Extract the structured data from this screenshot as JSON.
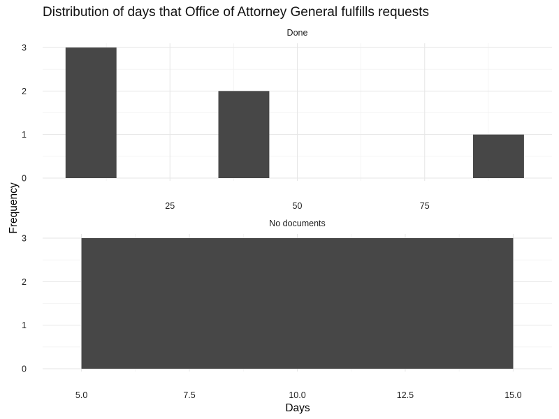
{
  "chart_data": {
    "type": "bar",
    "title": "Distribution of days that Office of Attorney General fulfills requests",
    "xlabel": "Days",
    "ylabel": "Frequency",
    "grid": true,
    "legend": "none",
    "bar_color": "#474747",
    "panels": [
      {
        "strip": "Done",
        "xlim": [
          0,
          100
        ],
        "ylim": [
          0,
          3
        ],
        "x_ticks": [
          25,
          50,
          75
        ],
        "x_tick_labels": [
          "25",
          "50",
          "75"
        ],
        "y_ticks": [
          0,
          1,
          2,
          3
        ],
        "y_tick_labels": [
          "0",
          "1",
          "2",
          "3"
        ],
        "bars": [
          {
            "x0": 4.5,
            "x1": 14.5,
            "value": 3
          },
          {
            "x0": 34.5,
            "x1": 44.5,
            "value": 2
          },
          {
            "x0": 84.5,
            "x1": 94.5,
            "value": 1
          }
        ]
      },
      {
        "strip": "No documents",
        "xlim": [
          4.1,
          15.9
        ],
        "ylim": [
          0,
          3
        ],
        "x_ticks": [
          5,
          7.5,
          10,
          12.5,
          15
        ],
        "x_tick_labels": [
          "5.0",
          "7.5",
          "10.0",
          "12.5",
          "15.0"
        ],
        "y_ticks": [
          0,
          1,
          2,
          3
        ],
        "y_tick_labels": [
          "0",
          "1",
          "2",
          "3"
        ],
        "bars": [
          {
            "x0": 5,
            "x1": 15,
            "value": 3
          }
        ]
      }
    ]
  }
}
